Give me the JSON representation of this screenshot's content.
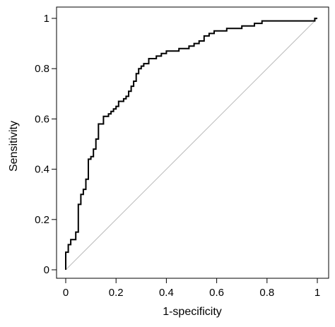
{
  "chart_data": {
    "type": "line",
    "xlabel": "1-specificity",
    "ylabel": "Sensitivity",
    "xlim": [
      0,
      1
    ],
    "ylim": [
      0,
      1
    ],
    "x_ticks": [
      {
        "value": 0,
        "label": "0"
      },
      {
        "value": 0.2,
        "label": "0.2"
      },
      {
        "value": 0.4,
        "label": "0.4"
      },
      {
        "value": 0.6,
        "label": "0.6"
      },
      {
        "value": 0.8,
        "label": "0.8"
      },
      {
        "value": 1,
        "label": "1"
      }
    ],
    "y_ticks": [
      {
        "value": 0,
        "label": "0"
      },
      {
        "value": 0.2,
        "label": "0.2"
      },
      {
        "value": 0.4,
        "label": "0.4"
      },
      {
        "value": 0.6,
        "label": "0.6"
      },
      {
        "value": 0.8,
        "label": "0.8"
      },
      {
        "value": 1,
        "label": "1"
      }
    ],
    "grid": false,
    "legend": "none",
    "series": [
      {
        "style": "step",
        "color": "#000000",
        "x": [
          0,
          0,
          0.01,
          0.01,
          0.02,
          0.02,
          0.04,
          0.04,
          0.05,
          0.05,
          0.06,
          0.06,
          0.07,
          0.07,
          0.08,
          0.08,
          0.09,
          0.09,
          0.1,
          0.1,
          0.11,
          0.11,
          0.12,
          0.12,
          0.13,
          0.13,
          0.15,
          0.15,
          0.17,
          0.17,
          0.18,
          0.18,
          0.19,
          0.19,
          0.2,
          0.2,
          0.21,
          0.21,
          0.23,
          0.23,
          0.24,
          0.24,
          0.25,
          0.25,
          0.26,
          0.26,
          0.27,
          0.27,
          0.28,
          0.28,
          0.29,
          0.29,
          0.3,
          0.3,
          0.31,
          0.31,
          0.33,
          0.33,
          0.35,
          0.35,
          0.36,
          0.36,
          0.38,
          0.38,
          0.4,
          0.4,
          0.45,
          0.45,
          0.49,
          0.49,
          0.51,
          0.51,
          0.53,
          0.53,
          0.55,
          0.55,
          0.57,
          0.57,
          0.59,
          0.59,
          0.64,
          0.64,
          0.7,
          0.7,
          0.75,
          0.75,
          0.78,
          0.78,
          0.87,
          0.87,
          0.99,
          0.99,
          1
        ],
        "y": [
          0,
          0.07,
          0.07,
          0.1,
          0.1,
          0.12,
          0.12,
          0.15,
          0.15,
          0.26,
          0.26,
          0.3,
          0.3,
          0.32,
          0.32,
          0.36,
          0.36,
          0.44,
          0.44,
          0.45,
          0.45,
          0.48,
          0.48,
          0.52,
          0.52,
          0.58,
          0.58,
          0.61,
          0.61,
          0.62,
          0.62,
          0.63,
          0.63,
          0.64,
          0.64,
          0.65,
          0.65,
          0.67,
          0.67,
          0.68,
          0.68,
          0.69,
          0.69,
          0.71,
          0.71,
          0.73,
          0.73,
          0.75,
          0.75,
          0.78,
          0.78,
          0.8,
          0.8,
          0.81,
          0.81,
          0.82,
          0.82,
          0.84,
          0.84,
          0.84,
          0.84,
          0.85,
          0.85,
          0.86,
          0.86,
          0.87,
          0.87,
          0.88,
          0.88,
          0.89,
          0.89,
          0.9,
          0.9,
          0.91,
          0.91,
          0.93,
          0.93,
          0.94,
          0.94,
          0.95,
          0.95,
          0.96,
          0.96,
          0.97,
          0.97,
          0.98,
          0.98,
          0.99,
          0.99,
          0.99,
          0.99,
          1,
          1
        ]
      },
      {
        "style": "reference",
        "color": "#bbbbbb",
        "x": [
          0,
          1
        ],
        "y": [
          0,
          1
        ]
      }
    ]
  }
}
